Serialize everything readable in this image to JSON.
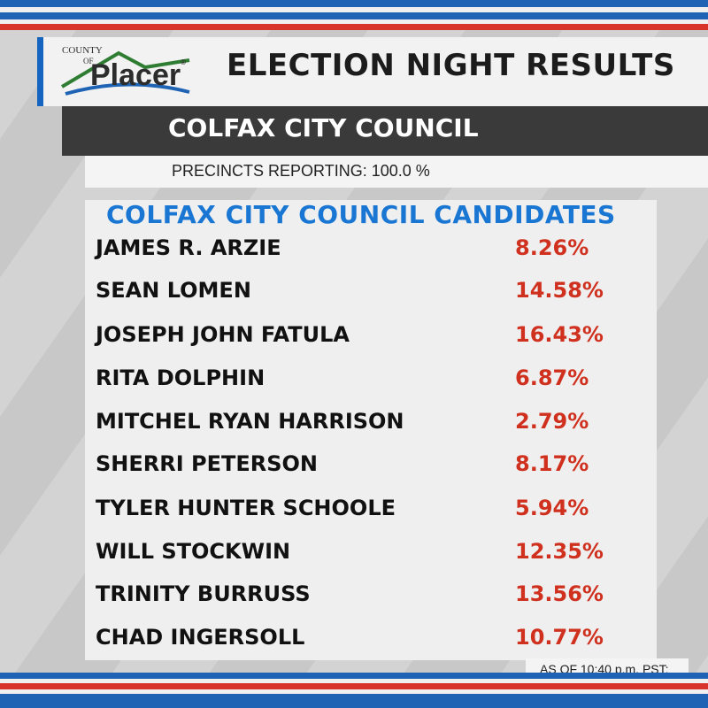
{
  "colors": {
    "blue": "#1e63b4",
    "red": "#d0311f",
    "dark_bar": "#3a3a3a",
    "title_blue": "#1976d2"
  },
  "logo": {
    "county": "COUNTY",
    "of": "OF",
    "name": "Placer",
    "reg": "®"
  },
  "header": {
    "title": "ELECTION NIGHT RESULTS"
  },
  "race": {
    "title": "COLFAX CITY COUNCIL",
    "precincts": "PRECINCTS REPORTING: 100.0 %",
    "candidates_title": "COLFAX CITY COUNCIL CANDIDATES"
  },
  "candidates": [
    {
      "name": "JAMES R. ARZIE",
      "pct": "8.26%"
    },
    {
      "name": "SEAN LOMEN",
      "pct": "14.58%"
    },
    {
      "name": "JOSEPH JOHN FATULA",
      "pct": "16.43%"
    },
    {
      "name": "RITA DOLPHIN",
      "pct": "6.87%"
    },
    {
      "name": "MITCHEL RYAN HARRISON",
      "pct": "2.79%"
    },
    {
      "name": "SHERRI PETERSON",
      "pct": "8.17%"
    },
    {
      "name": "TYLER HUNTER SCHOOLE",
      "pct": "5.94%"
    },
    {
      "name": "WILL STOCKWIN",
      "pct": "12.35%"
    },
    {
      "name": "TRINITY BURRUSS",
      "pct": "13.56%"
    },
    {
      "name": "CHAD INGERSOLL",
      "pct": "10.77%"
    }
  ],
  "footer": {
    "as_of": "AS OF 10:40 p.m. PST:"
  }
}
